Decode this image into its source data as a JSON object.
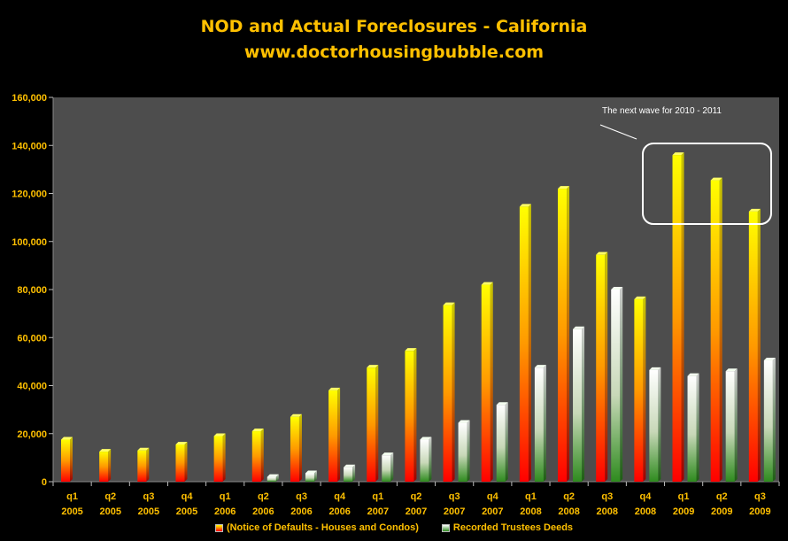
{
  "title_line1": "NOD and Actual Foreclosures - California",
  "title_line2": "www.doctorhousingbubble.com",
  "annotation": "The next wave for 2010 - 2011",
  "colors": {
    "background": "#000000",
    "plot_area": "#4d4d4d",
    "text": "#ffc000",
    "nod_top": "#ffff00",
    "nod_mid": "#ff9900",
    "nod_bottom": "#ff0000",
    "rtd_top": "#ffffff",
    "rtd_bottom": "#2e8b1e"
  },
  "chart_data": {
    "type": "bar",
    "categories": [
      [
        "q1",
        "2005"
      ],
      [
        "q2",
        "2005"
      ],
      [
        "q3",
        "2005"
      ],
      [
        "q4",
        "2005"
      ],
      [
        "q1",
        "2006"
      ],
      [
        "q2",
        "2006"
      ],
      [
        "q3",
        "2006"
      ],
      [
        "q4",
        "2006"
      ],
      [
        "q1",
        "2007"
      ],
      [
        "q2",
        "2007"
      ],
      [
        "q3",
        "2007"
      ],
      [
        "q4",
        "2007"
      ],
      [
        "q1",
        "2008"
      ],
      [
        "q2",
        "2008"
      ],
      [
        "q3",
        "2008"
      ],
      [
        "q4",
        "2008"
      ],
      [
        "q1",
        "2009"
      ],
      [
        "q2",
        "2009"
      ],
      [
        "q3",
        "2009"
      ]
    ],
    "series": [
      {
        "name": "(Notice of Defaults - Houses and Condos)",
        "values": [
          17500,
          12500,
          13000,
          15500,
          19000,
          21000,
          27000,
          38000,
          47500,
          54500,
          73500,
          82000,
          114500,
          122000,
          94500,
          76000,
          136000,
          125500,
          112500
        ]
      },
      {
        "name": "Recorded Trustees Deeds",
        "values": [
          0,
          0,
          0,
          0,
          0,
          2000,
          3500,
          6000,
          11000,
          17500,
          24500,
          32000,
          47500,
          63500,
          80000,
          46500,
          44000,
          46000,
          50500
        ]
      }
    ],
    "ylim": [
      0,
      160000
    ],
    "yticks": [
      "0",
      "20,000",
      "40,000",
      "60,000",
      "80,000",
      "100,000",
      "120,000",
      "140,000",
      "160,000"
    ],
    "grid": false,
    "legend_position": "bottom"
  }
}
